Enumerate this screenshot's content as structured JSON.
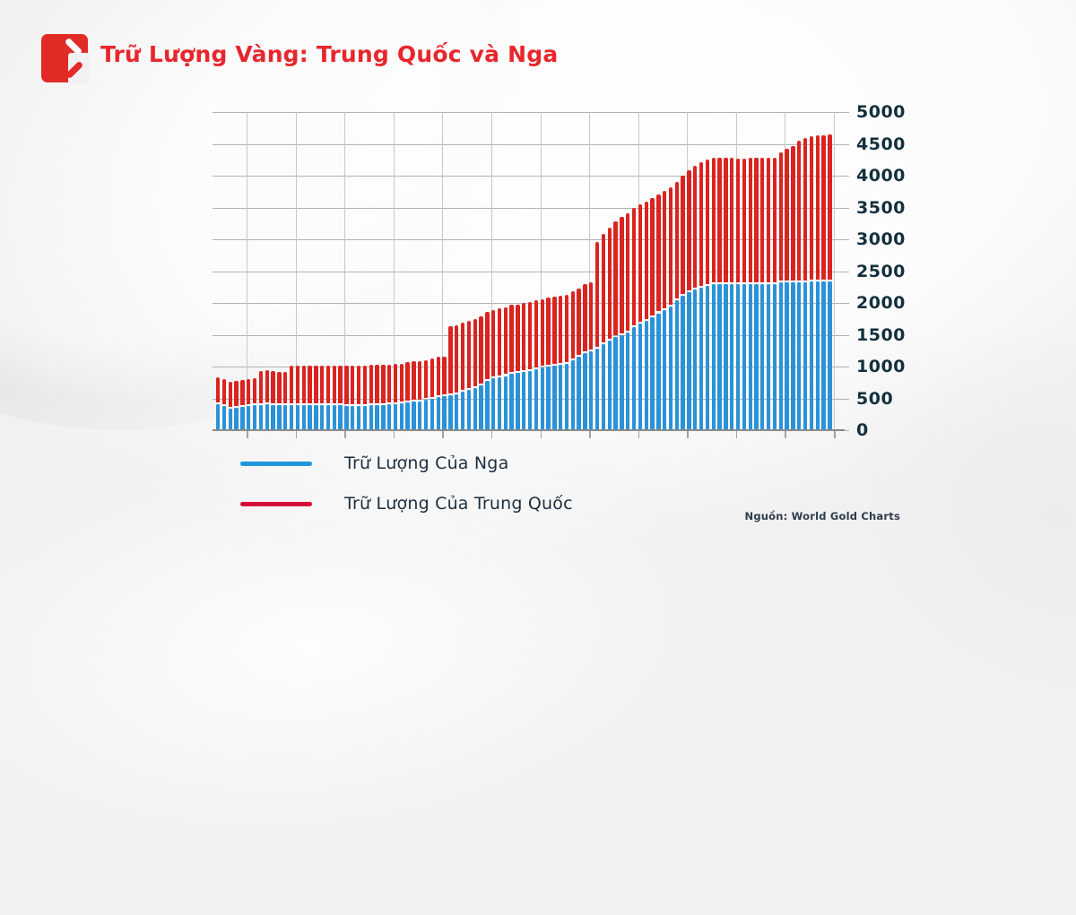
{
  "header": {
    "title": "Trữ Lượng Vàng: Trung Quốc và Nga"
  },
  "legend": {
    "items": [
      {
        "label": "Trữ Lượng Của Nga",
        "color": "#1e97dd"
      },
      {
        "label": "Trữ Lượng Của Trung Quốc",
        "color": "#d60d39"
      }
    ]
  },
  "source": "Nguồn: World Gold Charts",
  "colors": {
    "title": "#e7272c",
    "bar_russia": "#2b92d8",
    "bar_china": "#da2420",
    "axis_text": "#14303e",
    "background": "#f2f1f1"
  },
  "chart_data": {
    "type": "bar",
    "stacked": true,
    "title": "Trữ Lượng Vàng: Trung Quốc và Nga",
    "xlabel": "",
    "ylabel": "",
    "ylim": [
      0,
      5000
    ],
    "yticks": [
      0,
      500,
      1000,
      1500,
      2000,
      2500,
      3000,
      3500,
      4000,
      4500,
      5000
    ],
    "grid": true,
    "legend_position": "bottom-left",
    "x_tick_labels_visible": false,
    "note": "Stacked thin bars, x-axis unlabeled (time series, values in tonnes estimated from gridlines)",
    "series": [
      {
        "name": "Trữ Lượng Của Nga",
        "color": "#2b92d8",
        "values": [
          414,
          384,
          343,
          350,
          365,
          377,
          388,
          400,
          411,
          400,
          392,
          388,
          388,
          389,
          390,
          390,
          390,
          390,
          390,
          390,
          390,
          387,
          387,
          387,
          387,
          395,
          398,
          400,
          402,
          408,
          418,
          438,
          450,
          457,
          472,
          495,
          520,
          532,
          550,
          568,
          608,
          640,
          668,
          710,
          775,
          811,
          830,
          852,
          883,
          896,
          920,
          936,
          958,
          981,
          996,
          1015,
          1035,
          1041,
          1094,
          1149,
          1208,
          1238,
          1275,
          1352,
          1415,
          1460,
          1499,
          1542,
          1615,
          1680,
          1716,
          1779,
          1838,
          1890,
          1944,
          2036,
          2113,
          2168,
          2208,
          2241,
          2271,
          2299,
          2299,
          2299,
          2299,
          2292,
          2296,
          2299,
          2302,
          2299,
          2301,
          2299,
          2330,
          2327,
          2330,
          2330,
          2330,
          2333,
          2336,
          2336,
          2336
        ]
      },
      {
        "name": "Trữ Lượng Của Trung Quốc",
        "color": "#da2420",
        "values": [
          395,
          395,
          395,
          395,
          395,
          395,
          395,
          500,
          500,
          500,
          500,
          500,
          600,
          600,
          600,
          600,
          600,
          600,
          600,
          600,
          600,
          600,
          600,
          600,
          600,
          600,
          600,
          600,
          600,
          600,
          600,
          600,
          600,
          600,
          600,
          600,
          600,
          600,
          1054,
          1054,
          1054,
          1054,
          1054,
          1054,
          1054,
          1054,
          1054,
          1054,
          1054,
          1054,
          1054,
          1054,
          1054,
          1054,
          1054,
          1054,
          1054,
          1054,
          1054,
          1054,
          1054,
          1054,
          1658,
          1709,
          1743,
          1788,
          1823,
          1838,
          1843,
          1843,
          1843,
          1843,
          1843,
          1843,
          1843,
          1843,
          1852,
          1885,
          1916,
          1948,
          1948,
          1948,
          1948,
          1948,
          1948,
          1948,
          1948,
          1948,
          1948,
          1948,
          1948,
          1948,
          2011,
          2068,
          2113,
          2192,
          2235,
          2262,
          2264,
          2264,
          2280
        ]
      }
    ]
  }
}
